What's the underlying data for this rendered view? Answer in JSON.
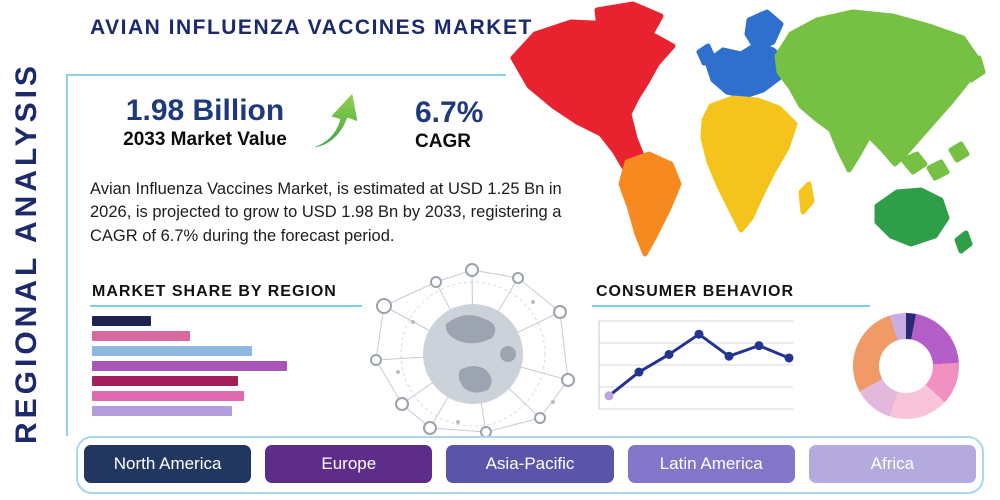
{
  "header": {
    "title": "AVIAN INFLUENZA VACCINES MARKET"
  },
  "sidebar": {
    "vertical_label": "REGIONAL ANALYSIS"
  },
  "stats": {
    "market_value": "1.98 Billion",
    "market_value_caption": "2033 Market Value",
    "cagr_value": "6.7%",
    "cagr_caption": "CAGR",
    "arrow_gradient_top": "#9bd14c",
    "arrow_gradient_bottom": "#3aa648"
  },
  "description": "Avian Influenza Vaccines Market, is estimated at USD 1.25 Bn in 2026, is projected to grow to USD 1.98 Bn by 2033, registering a CAGR of 6.7% during the forecast period.",
  "accent": {
    "underline": "#7ecbe4",
    "frame": "#a9d8ec",
    "navy": "#1c2a6b"
  },
  "map": {
    "north_america": "#e8232f",
    "greenland": "#e8232f",
    "south_america": "#f6891f",
    "europe": "#2f6fce",
    "scandinavia": "#2f6fce",
    "uk": "#2f6fce",
    "africa": "#f4c41c",
    "madagascar": "#f4c41c",
    "asia": "#76c043",
    "japan": "#76c043",
    "se_asia_1": "#76c043",
    "se_asia_2": "#76c043",
    "se_asia_3": "#76c043",
    "australia": "#2f9e49",
    "new_zealand": "#2f9e49"
  },
  "chart_data": [
    {
      "type": "bar",
      "orientation": "horizontal",
      "title": "MARKET SHARE BY REGION",
      "values": [
        30,
        50,
        82,
        100,
        75,
        78,
        72
      ],
      "value_note": "relative bar lengths estimated from pixels, no axis labels shown",
      "xlim": [
        0,
        100
      ],
      "colors": [
        "#1c2352",
        "#d66a9f",
        "#8fb8e0",
        "#a855b8",
        "#a31e5a",
        "#e06ab0",
        "#b39ddb"
      ]
    },
    {
      "type": "line",
      "title": "CONSUMER BEHAVIOR",
      "x": [
        1,
        2,
        3,
        4,
        5,
        6,
        7
      ],
      "values": [
        15,
        42,
        62,
        85,
        60,
        72,
        58
      ],
      "ylim": [
        0,
        100
      ],
      "grid": true,
      "line_color": "#25358e",
      "first_marker_color": "#b9a6e0"
    },
    {
      "type": "pie",
      "donut": true,
      "title": "",
      "slices": [
        {
          "value": 3,
          "color": "#2c2a72"
        },
        {
          "value": 21,
          "color": "#b45fc9"
        },
        {
          "value": 13,
          "color": "#f290c1"
        },
        {
          "value": 18,
          "color": "#f9c3da"
        },
        {
          "value": 12,
          "color": "#e3b8dd"
        },
        {
          "value": 28,
          "color": "#f09a67"
        },
        {
          "value": 5,
          "color": "#c9aee3"
        }
      ]
    }
  ],
  "buttons": [
    {
      "label": "North America",
      "color": "#21375f"
    },
    {
      "label": "Europe",
      "color": "#5e2d8a"
    },
    {
      "label": "Asia-Pacific",
      "color": "#5a55a8"
    },
    {
      "label": "Latin America",
      "color": "#8375c8"
    },
    {
      "label": "Africa",
      "color": "#b5aade"
    }
  ]
}
